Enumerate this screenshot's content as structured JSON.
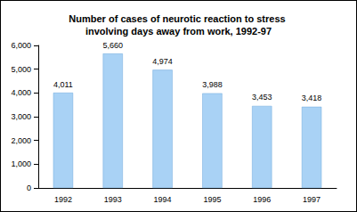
{
  "chart_data": {
    "type": "bar",
    "title": "Number of cases of neurotic reaction to stress involving days away from work, 1992-97",
    "categories": [
      "1992",
      "1993",
      "1994",
      "1995",
      "1996",
      "1997"
    ],
    "values": [
      4011,
      5660,
      4974,
      3988,
      3453,
      3418
    ],
    "value_labels": [
      "4,011",
      "5,660",
      "4,974",
      "3,988",
      "3,453",
      "3,418"
    ],
    "color": "#a9d2f5",
    "ylim": [
      0,
      6000
    ],
    "yticks": [
      0,
      {
        "value": 1000,
        "label": "1,000"
      },
      {
        "value": 2000,
        "label": "2,000"
      },
      {
        "value": 3000,
        "label": "3,000"
      },
      {
        "value": 4000,
        "label": "4,000"
      },
      {
        "value": 5000,
        "label": "5,000"
      },
      {
        "value": 6000,
        "label": "6,000"
      }
    ],
    "grid": false,
    "data_labels": true
  }
}
